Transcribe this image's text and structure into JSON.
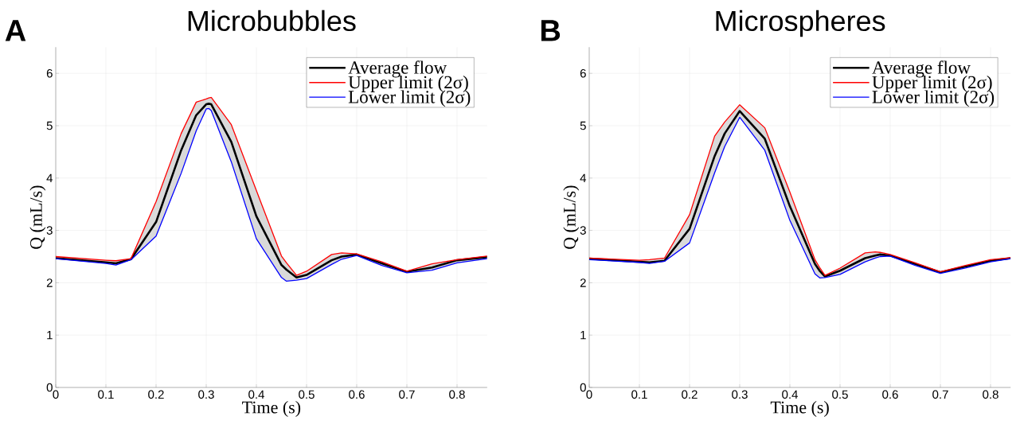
{
  "chart_data": [
    {
      "type": "line",
      "title": "Microbubbles",
      "xlabel": "Time (s)",
      "ylabel": "Q (mL/s)",
      "annotations": [
        "A"
      ],
      "xlim": [
        0,
        0.86
      ],
      "ylim": [
        0,
        6.5
      ],
      "xticks": [
        0,
        0.1,
        0.2,
        0.3,
        0.4,
        0.5,
        0.6,
        0.7,
        0.8
      ],
      "yticks": [
        0,
        1,
        2,
        3,
        4,
        5,
        6
      ],
      "grid": true,
      "legend": "top right",
      "marker": "none",
      "line_style": "solid",
      "x": [
        0,
        0.1,
        0.12,
        0.15,
        0.2,
        0.25,
        0.28,
        0.3,
        0.305,
        0.31,
        0.35,
        0.4,
        0.45,
        0.46,
        0.48,
        0.5,
        0.55,
        0.57,
        0.6,
        0.65,
        0.7,
        0.75,
        0.8,
        0.86
      ],
      "series": [
        {
          "name": "Average flow",
          "color": "#000000",
          "values": [
            2.47,
            2.39,
            2.37,
            2.45,
            3.16,
            4.53,
            5.2,
            5.41,
            5.42,
            5.41,
            4.69,
            3.27,
            2.34,
            2.25,
            2.1,
            2.15,
            2.43,
            2.5,
            2.54,
            2.37,
            2.21,
            2.29,
            2.43,
            2.49
          ],
          "upper": [
            2.5,
            2.43,
            2.42,
            2.46,
            3.55,
            4.85,
            5.45,
            5.51,
            5.53,
            5.54,
            5.02,
            3.76,
            2.51,
            2.38,
            2.14,
            2.22,
            2.54,
            2.57,
            2.55,
            2.4,
            2.22,
            2.36,
            2.44,
            2.51
          ],
          "lower": [
            2.46,
            2.37,
            2.34,
            2.44,
            2.89,
            4.09,
            4.9,
            5.32,
            5.33,
            5.29,
            4.31,
            2.84,
            2.1,
            2.03,
            2.05,
            2.08,
            2.35,
            2.45,
            2.52,
            2.33,
            2.19,
            2.24,
            2.38,
            2.46
          ]
        },
        {
          "name": "Upper limit (2σ)",
          "color": "#ff0000",
          "values": [
            2.5,
            2.43,
            2.42,
            2.46,
            3.55,
            4.85,
            5.45,
            5.51,
            5.53,
            5.54,
            5.02,
            3.76,
            2.51,
            2.38,
            2.14,
            2.22,
            2.54,
            2.57,
            2.55,
            2.4,
            2.22,
            2.36,
            2.44,
            2.51
          ]
        },
        {
          "name": "Lower limit (2σ)",
          "color": "#0000ff",
          "values": [
            2.46,
            2.37,
            2.34,
            2.44,
            2.89,
            4.09,
            4.9,
            5.32,
            5.33,
            5.29,
            4.31,
            2.84,
            2.1,
            2.03,
            2.05,
            2.08,
            2.35,
            2.45,
            2.52,
            2.33,
            2.19,
            2.24,
            2.38,
            2.46
          ]
        }
      ]
    },
    {
      "type": "line",
      "title": "Microspheres",
      "xlabel": "Time (s)",
      "ylabel": "Q (mL/s)",
      "annotations": [
        "B"
      ],
      "xlim": [
        0,
        0.84
      ],
      "ylim": [
        0,
        6.5
      ],
      "xticks": [
        0,
        0.1,
        0.2,
        0.3,
        0.4,
        0.5,
        0.6,
        0.7,
        0.8
      ],
      "yticks": [
        0,
        1,
        2,
        3,
        4,
        5,
        6
      ],
      "grid": true,
      "legend": "top right",
      "marker": "none",
      "line_style": "solid",
      "x": [
        0,
        0.1,
        0.12,
        0.15,
        0.2,
        0.25,
        0.27,
        0.3,
        0.35,
        0.4,
        0.45,
        0.46,
        0.47,
        0.5,
        0.55,
        0.57,
        0.58,
        0.6,
        0.65,
        0.7,
        0.75,
        0.8,
        0.84
      ],
      "series": [
        {
          "name": "Average flow",
          "color": "#000000",
          "values": [
            2.46,
            2.4,
            2.39,
            2.42,
            3.03,
            4.42,
            4.85,
            5.28,
            4.75,
            3.46,
            2.36,
            2.22,
            2.12,
            2.23,
            2.47,
            2.52,
            2.54,
            2.52,
            2.36,
            2.2,
            2.31,
            2.42,
            2.47
          ],
          "upper": [
            2.47,
            2.43,
            2.44,
            2.47,
            3.3,
            4.8,
            5.07,
            5.4,
            4.96,
            3.73,
            2.44,
            2.28,
            2.14,
            2.28,
            2.57,
            2.59,
            2.58,
            2.54,
            2.38,
            2.21,
            2.33,
            2.44,
            2.48
          ],
          "lower": [
            2.44,
            2.39,
            2.37,
            2.41,
            2.76,
            4.1,
            4.6,
            5.16,
            4.53,
            3.19,
            2.17,
            2.09,
            2.1,
            2.16,
            2.4,
            2.47,
            2.5,
            2.51,
            2.33,
            2.18,
            2.28,
            2.4,
            2.46
          ]
        },
        {
          "name": "Upper limit (2σ)",
          "color": "#ff0000",
          "values": [
            2.47,
            2.43,
            2.44,
            2.47,
            3.3,
            4.8,
            5.07,
            5.4,
            4.96,
            3.73,
            2.44,
            2.28,
            2.14,
            2.28,
            2.57,
            2.59,
            2.58,
            2.54,
            2.38,
            2.21,
            2.33,
            2.44,
            2.48
          ]
        },
        {
          "name": "Lower limit (2σ)",
          "color": "#0000ff",
          "values": [
            2.44,
            2.39,
            2.37,
            2.41,
            2.76,
            4.1,
            4.6,
            5.16,
            4.53,
            3.19,
            2.17,
            2.09,
            2.1,
            2.16,
            2.4,
            2.47,
            2.5,
            2.51,
            2.33,
            2.18,
            2.28,
            2.4,
            2.46
          ]
        }
      ]
    }
  ]
}
